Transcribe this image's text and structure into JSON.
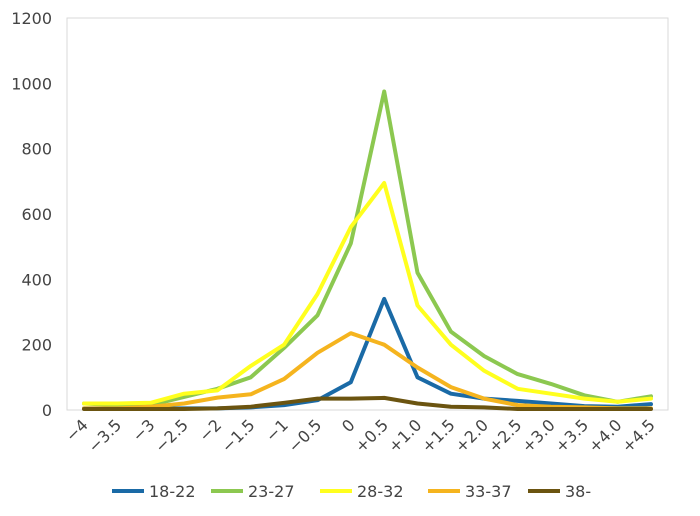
{
  "chart_data": {
    "type": "line",
    "categories": [
      "−4",
      "−3.5",
      "−3",
      "−2.5",
      "−2",
      "−1.5",
      "−1",
      "−0.5",
      "0",
      "+0.5",
      "+1.0",
      "+1.5",
      "+2.0",
      "+2.5",
      "+3.0",
      "+3.5",
      "+4.0",
      "+4.5"
    ],
    "ylim": [
      0,
      1200
    ],
    "yticks": [
      "0",
      "200",
      "400",
      "600",
      "800",
      "1000",
      "1200"
    ],
    "grid": false,
    "legend_position": "bottom",
    "series": [
      {
        "name": "18-22",
        "color": "#1a6aa6",
        "values": [
          5,
          5,
          5,
          5,
          5,
          8,
          15,
          30,
          85,
          340,
          100,
          50,
          35,
          28,
          20,
          12,
          10,
          18
        ]
      },
      {
        "name": "23-27",
        "color": "#8cc850",
        "values": [
          20,
          15,
          15,
          40,
          65,
          100,
          190,
          290,
          510,
          975,
          420,
          240,
          165,
          110,
          80,
          45,
          25,
          42
        ]
      },
      {
        "name": "28-32",
        "color": "#ffff1e",
        "values": [
          20,
          20,
          22,
          50,
          60,
          135,
          200,
          355,
          560,
          695,
          320,
          200,
          120,
          65,
          50,
          35,
          25,
          35
        ]
      },
      {
        "name": "33-37",
        "color": "#f5b41e",
        "values": [
          5,
          5,
          10,
          20,
          38,
          48,
          95,
          175,
          235,
          200,
          130,
          70,
          35,
          15,
          10,
          8,
          5,
          5
        ]
      },
      {
        "name": "38-",
        "color": "#6b5410",
        "values": [
          3,
          3,
          3,
          3,
          5,
          10,
          22,
          35,
          35,
          37,
          20,
          10,
          8,
          3,
          3,
          3,
          3,
          3
        ]
      }
    ]
  }
}
